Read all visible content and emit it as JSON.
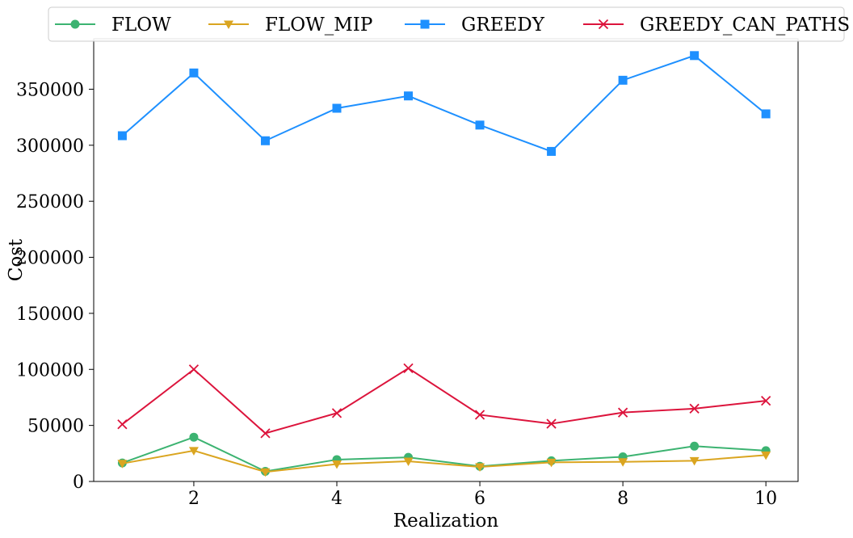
{
  "chart_data": {
    "type": "line",
    "title": "",
    "xlabel": "Realization",
    "ylabel": "Cost",
    "x": [
      1,
      2,
      3,
      4,
      5,
      6,
      7,
      8,
      9,
      10
    ],
    "xlim": [
      0.6,
      10.45
    ],
    "ylim": [
      0,
      395000
    ],
    "xticks": [
      2,
      4,
      6,
      8,
      10
    ],
    "yticks": [
      0,
      50000,
      100000,
      150000,
      200000,
      250000,
      300000,
      350000
    ],
    "grid": false,
    "legend_position": "top, outside plot, single row",
    "series": [
      {
        "name": "FLOW",
        "color": "#3cb371",
        "marker": "circle",
        "values": [
          16500,
          39500,
          9000,
          19500,
          21500,
          13500,
          18500,
          22000,
          31500,
          27500
        ]
      },
      {
        "name": "FLOW_MIP",
        "color": "#daa520",
        "marker": "triangle-down",
        "values": [
          16000,
          27500,
          8500,
          15500,
          18000,
          13000,
          17000,
          17500,
          18500,
          23500
        ]
      },
      {
        "name": "GREEDY",
        "color": "#1e90ff",
        "marker": "square",
        "values": [
          308500,
          364500,
          304000,
          333000,
          344000,
          318000,
          294500,
          358000,
          380000,
          328000
        ]
      },
      {
        "name": "GREEDY_CAN_PATHS",
        "color": "#dc143c",
        "marker": "x",
        "values": [
          51000,
          100000,
          43000,
          61000,
          101000,
          59500,
          51500,
          61500,
          65000,
          72000
        ]
      }
    ]
  }
}
